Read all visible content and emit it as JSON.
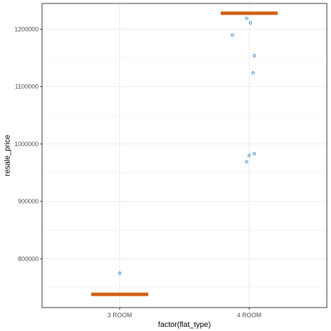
{
  "chart_data": {
    "type": "scatter",
    "xlabel": "factor(flat_type)",
    "ylabel": "resale_price",
    "categories": [
      "3 ROOM",
      "4 ROOM"
    ],
    "ylim": [
      715000,
      1245000
    ],
    "y_ticks": [
      {
        "value": 800000,
        "label": "800000"
      },
      {
        "value": 900000,
        "label": "900000"
      },
      {
        "value": 1000000,
        "label": "1000000"
      },
      {
        "value": 1100000,
        "label": "1100000"
      },
      {
        "value": 1200000,
        "label": "1200000"
      }
    ],
    "y_minor_ticks": [
      750000,
      850000,
      950000,
      1050000,
      1150000
    ],
    "grid": true,
    "points": [
      {
        "category": "3 ROOM",
        "x_offset": 0.0,
        "y": 775000
      },
      {
        "category": "4 ROOM",
        "x_offset": -0.02,
        "y": 1219000
      },
      {
        "category": "4 ROOM",
        "x_offset": 0.01,
        "y": 1211000
      },
      {
        "category": "4 ROOM",
        "x_offset": -0.13,
        "y": 1190000
      },
      {
        "category": "4 ROOM",
        "x_offset": 0.04,
        "y": 1154000
      },
      {
        "category": "4 ROOM",
        "x_offset": 0.03,
        "y": 1124000
      },
      {
        "category": "4 ROOM",
        "x_offset": 0.04,
        "y": 983000
      },
      {
        "category": "4 ROOM",
        "x_offset": 0.0,
        "y": 980000
      },
      {
        "category": "4 ROOM",
        "x_offset": -0.02,
        "y": 969000
      }
    ],
    "summary_bars": [
      {
        "category": "3 ROOM",
        "value": 738000
      },
      {
        "category": "4 ROOM",
        "value": 1228000
      }
    ],
    "colors": {
      "point": "#3a87c8",
      "summary_bar": "#d25f11",
      "grid": "#ebebeb",
      "panel_border": "#333333"
    }
  }
}
